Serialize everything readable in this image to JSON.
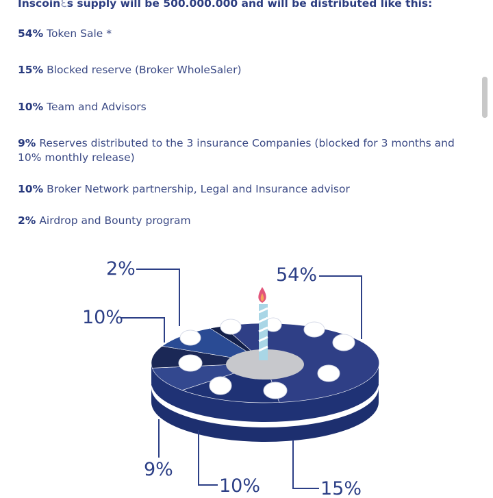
{
  "intro": {
    "text": "Inscoin",
    "glyph": "s",
    "text2": " supply will be 500.000.000 and will be distributed like this:"
  },
  "items": [
    {
      "pct": "54%",
      "label": "Token Sale *"
    },
    {
      "pct": "15%",
      "label": "Blocked reserve (Broker WholeSaler)"
    },
    {
      "pct": "10%",
      "label": "Team and Advisors"
    },
    {
      "pct": "9%",
      "label": "Reserves distributed to the 3 insurance Companies (blocked for 3 months and  10% monthly release)"
    },
    {
      "pct": "10%",
      "label": "Broker Network partnership,  Legal and Insurance advisor"
    },
    {
      "pct": "2%",
      "label": "Airdrop and Bounty program"
    }
  ],
  "chart_data": {
    "type": "pie",
    "labels": [
      "54%",
      "15%",
      "10%",
      "9%",
      "10%",
      "2%"
    ],
    "values": [
      54,
      15,
      10,
      9,
      10,
      2
    ],
    "colors": [
      "#2f3f86",
      "#1f3275",
      "#33488f",
      "#1b2856",
      "#2a4b94",
      "#14204a"
    ]
  },
  "colors": {
    "navy": "#2c3f86",
    "accent": "#e2557a"
  }
}
